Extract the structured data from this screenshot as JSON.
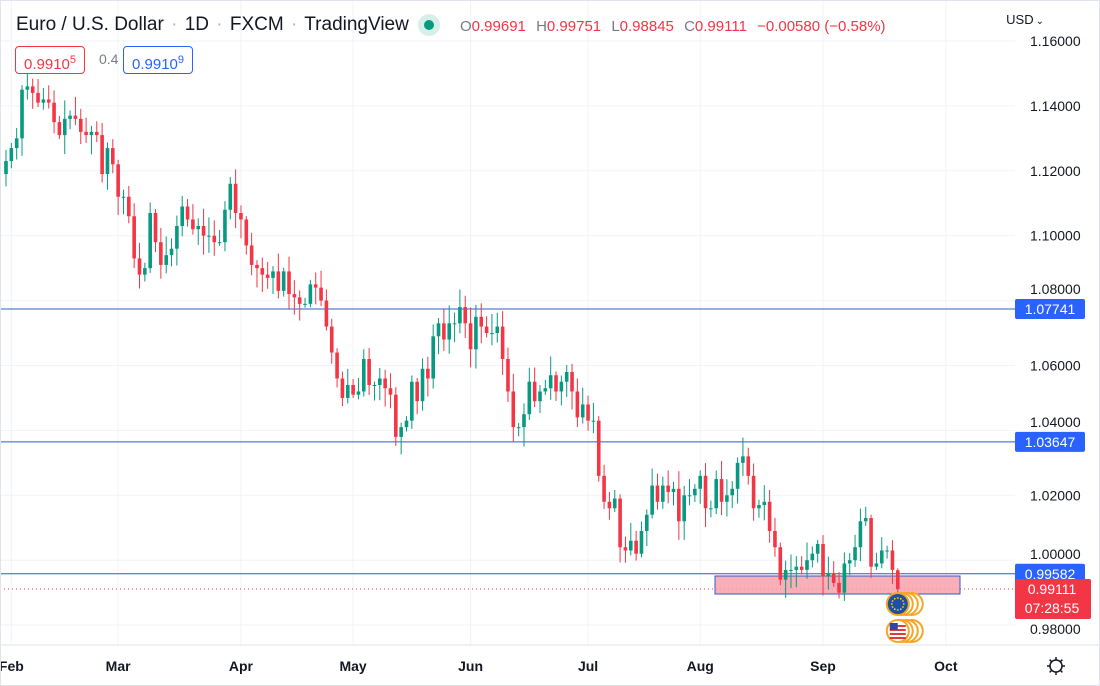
{
  "header": {
    "symbol": "Euro / U.S. Dollar",
    "interval": "1D",
    "exchange": "FXCM",
    "source": "TradingView",
    "sep": "·",
    "open_label": "O",
    "open": "0.99691",
    "high_label": "H",
    "high": "0.99751",
    "low_label": "L",
    "low": "0.98845",
    "close_label": "C",
    "close": "0.99111",
    "change": "−0.00580 (−0.58%)",
    "sell_price": "0.9910",
    "sell_price_pip": "5",
    "spread": "0.4",
    "buy_price": "0.9910",
    "buy_price_pip": "9",
    "currency": "USD"
  },
  "colors": {
    "up": "#089981",
    "down": "#f23645",
    "level_line": "#2d5cc6",
    "zone_fill": "#f7a1ab",
    "grid": "#f0f3fa"
  },
  "icons": {
    "currency_menu": "chevron-down-icon",
    "settings": "gear-icon",
    "events": [
      "eu-flag-icon",
      "us-flag-icon"
    ]
  },
  "chart_data": {
    "type": "candlestick",
    "title": "Euro / U.S. Dollar · 1D · FXCM · TradingView",
    "ylim": [
      0.97,
      1.165
    ],
    "y_ticks": [
      "1.16000",
      "1.14000",
      "1.12000",
      "1.10000",
      "1.08000",
      "1.06000",
      "1.04000",
      "1.02000",
      "1.00000",
      "0.98000"
    ],
    "x_ticks": [
      "Feb",
      "Mar",
      "Apr",
      "May",
      "Jun",
      "Jul",
      "Aug",
      "Sep",
      "Oct"
    ],
    "grid": true,
    "close_series": [
      {
        "month": "Jan",
        "days": [
          31
        ],
        "close": [
          1.123
        ]
      },
      {
        "month": "Feb",
        "days": [
          1,
          2,
          3,
          4,
          7,
          8,
          9,
          10,
          11,
          14,
          15,
          16,
          17,
          18,
          21,
          22,
          23,
          24,
          25,
          28
        ],
        "close": [
          1.127,
          1.13,
          1.145,
          1.146,
          1.144,
          1.141,
          1.142,
          1.141,
          1.135,
          1.131,
          1.136,
          1.137,
          1.136,
          1.132,
          1.131,
          1.132,
          1.131,
          1.119,
          1.127,
          1.122
        ]
      },
      {
        "month": "Mar",
        "days": [
          1,
          2,
          3,
          4,
          7,
          8,
          9,
          10,
          11,
          14,
          15,
          16,
          17,
          18,
          21,
          22,
          23,
          24,
          25,
          28,
          29,
          30,
          31
        ],
        "close": [
          1.112,
          1.112,
          1.106,
          1.093,
          1.088,
          1.09,
          1.107,
          1.098,
          1.091,
          1.094,
          1.096,
          1.103,
          1.109,
          1.105,
          1.102,
          1.103,
          1.1,
          1.1,
          1.098,
          1.098,
          1.108,
          1.116,
          1.107
        ]
      },
      {
        "month": "Apr",
        "days": [
          1,
          4,
          5,
          6,
          7,
          8,
          11,
          12,
          13,
          14,
          15,
          18,
          19,
          20,
          21,
          22,
          25,
          26,
          27,
          28,
          29
        ],
        "close": [
          1.105,
          1.097,
          1.091,
          1.09,
          1.088,
          1.087,
          1.089,
          1.083,
          1.089,
          1.082,
          1.081,
          1.079,
          1.079,
          1.085,
          1.084,
          1.08,
          1.072,
          1.064,
          1.056,
          1.05,
          1.054
        ]
      },
      {
        "month": "May",
        "days": [
          2,
          3,
          4,
          5,
          6,
          9,
          10,
          11,
          12,
          13,
          16,
          17,
          18,
          19,
          20,
          23,
          24,
          25,
          26,
          27,
          30,
          31
        ],
        "close": [
          1.051,
          1.052,
          1.062,
          1.054,
          1.054,
          1.056,
          1.053,
          1.051,
          1.038,
          1.041,
          1.043,
          1.055,
          1.049,
          1.059,
          1.056,
          1.069,
          1.073,
          1.068,
          1.073,
          1.073,
          1.078,
          1.073
        ]
      },
      {
        "month": "Jun",
        "days": [
          1,
          2,
          3,
          6,
          7,
          8,
          9,
          10,
          13,
          14,
          15,
          16,
          17,
          20,
          21,
          22,
          23,
          24,
          27,
          28,
          29,
          30
        ],
        "close": [
          1.065,
          1.075,
          1.072,
          1.07,
          1.07,
          1.072,
          1.062,
          1.052,
          1.041,
          1.041,
          1.045,
          1.055,
          1.049,
          1.052,
          1.053,
          1.057,
          1.052,
          1.055,
          1.058,
          1.052,
          1.044,
          1.048
        ]
      },
      {
        "month": "Jul",
        "days": [
          1,
          4,
          5,
          6,
          7,
          8,
          11,
          12,
          13,
          14,
          15,
          18,
          19,
          20,
          21,
          22,
          25,
          26,
          27,
          28,
          29
        ],
        "close": [
          1.043,
          1.043,
          1.026,
          1.018,
          1.016,
          1.019,
          1.004,
          1.003,
          1.006,
          1.002,
          1.009,
          1.014,
          1.023,
          1.018,
          1.023,
          1.021,
          1.022,
          1.012,
          1.02,
          1.02,
          1.022
        ]
      },
      {
        "month": "Aug",
        "days": [
          1,
          2,
          3,
          4,
          5,
          8,
          9,
          10,
          11,
          12,
          15,
          16,
          17,
          18,
          19,
          22,
          23,
          24,
          25,
          26,
          29,
          30,
          31
        ],
        "close": [
          1.026,
          1.016,
          1.016,
          1.025,
          1.018,
          1.02,
          1.022,
          1.03,
          1.032,
          1.026,
          1.016,
          1.017,
          1.018,
          1.009,
          1.004,
          0.994,
          0.997,
          0.997,
          0.998,
          0.997,
          1.0,
          1.002,
          1.005
        ]
      },
      {
        "month": "Sep",
        "days": [
          1,
          2,
          5,
          6,
          7,
          8,
          9,
          12,
          13,
          14,
          15,
          16,
          19,
          20,
          21
        ],
        "close": [
          0.995,
          0.996,
          0.993,
          0.99,
          0.999,
          1.0,
          1.004,
          1.012,
          1.013,
          0.998,
          0.999,
          1.003,
          1.003,
          0.997,
          0.99111
        ]
      }
    ],
    "last_candle": {
      "open": 0.99691,
      "high": 0.99751,
      "low": 0.98845,
      "close": 0.99111
    },
    "horizontal_levels": [
      {
        "price": 1.07741,
        "label": "1.07741"
      },
      {
        "price": 1.03647,
        "label": "1.03647"
      },
      {
        "price": 0.99582,
        "label": "0.99582"
      }
    ],
    "support_zone": {
      "from": "Aug 4",
      "to": "Oct 5",
      "top": 0.99513,
      "bottom": 0.98958
    },
    "current_price": {
      "price": 0.99111,
      "label": "0.99111",
      "countdown": "07:28:55"
    }
  }
}
